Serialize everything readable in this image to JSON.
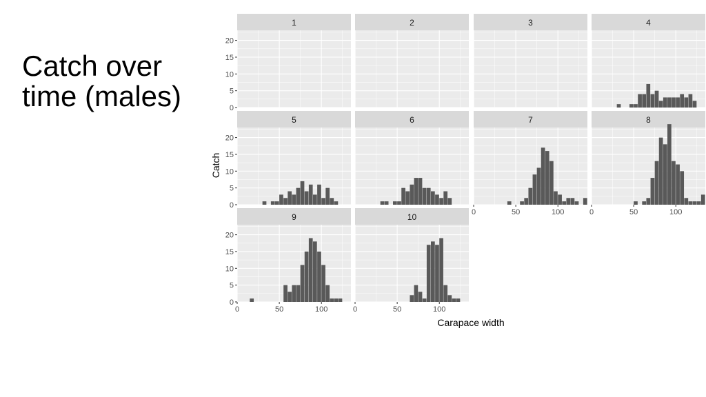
{
  "slide": {
    "title_line1": "Catch over",
    "title_line2": "time (males)"
  },
  "colors": {
    "bar": "#595959",
    "panel_bg": "#ebebeb",
    "strip_bg": "#d9d9d9",
    "grid": "#ffffff",
    "text": "#4d4d4d"
  },
  "chart_data": {
    "type": "bar",
    "layout": "faceted histogram",
    "xlabel": "Carapace width",
    "ylabel": "Catch",
    "xlim": [
      0,
      135
    ],
    "ylim": [
      0,
      23
    ],
    "xticks": [
      0,
      50,
      100
    ],
    "yticks": [
      0,
      5,
      10,
      15,
      20
    ],
    "bin_width": 5,
    "grid": true,
    "panels": [
      {
        "label": "1",
        "bins": []
      },
      {
        "label": "2",
        "bins": []
      },
      {
        "label": "3",
        "bins": []
      },
      {
        "label": "4",
        "bins": [
          [
            30,
            1
          ],
          [
            45,
            1
          ],
          [
            50,
            1
          ],
          [
            55,
            4
          ],
          [
            60,
            4
          ],
          [
            65,
            7
          ],
          [
            70,
            4
          ],
          [
            75,
            5
          ],
          [
            80,
            2
          ],
          [
            85,
            3
          ],
          [
            90,
            3
          ],
          [
            95,
            3
          ],
          [
            100,
            3
          ],
          [
            105,
            4
          ],
          [
            110,
            3
          ],
          [
            115,
            4
          ],
          [
            120,
            2
          ]
        ]
      },
      {
        "label": "5",
        "bins": [
          [
            30,
            1
          ],
          [
            40,
            1
          ],
          [
            45,
            1
          ],
          [
            50,
            3
          ],
          [
            55,
            2
          ],
          [
            60,
            4
          ],
          [
            65,
            3
          ],
          [
            70,
            5
          ],
          [
            75,
            7
          ],
          [
            80,
            4
          ],
          [
            85,
            6
          ],
          [
            90,
            3
          ],
          [
            95,
            6
          ],
          [
            100,
            2
          ],
          [
            105,
            5
          ],
          [
            110,
            2
          ],
          [
            115,
            1
          ]
        ]
      },
      {
        "label": "6",
        "bins": [
          [
            30,
            1
          ],
          [
            35,
            1
          ],
          [
            45,
            1
          ],
          [
            50,
            1
          ],
          [
            55,
            5
          ],
          [
            60,
            4
          ],
          [
            65,
            6
          ],
          [
            70,
            8
          ],
          [
            75,
            8
          ],
          [
            80,
            5
          ],
          [
            85,
            5
          ],
          [
            90,
            4
          ],
          [
            95,
            3
          ],
          [
            100,
            2
          ],
          [
            105,
            4
          ],
          [
            110,
            2
          ]
        ]
      },
      {
        "label": "7",
        "bins": [
          [
            40,
            1
          ],
          [
            55,
            1
          ],
          [
            60,
            2
          ],
          [
            65,
            5
          ],
          [
            70,
            9
          ],
          [
            75,
            11
          ],
          [
            80,
            17
          ],
          [
            85,
            16
          ],
          [
            90,
            13
          ],
          [
            95,
            4
          ],
          [
            100,
            3
          ],
          [
            105,
            1
          ],
          [
            110,
            2
          ],
          [
            115,
            2
          ],
          [
            120,
            1
          ],
          [
            130,
            2
          ]
        ]
      },
      {
        "label": "8",
        "bins": [
          [
            50,
            1
          ],
          [
            60,
            1
          ],
          [
            65,
            2
          ],
          [
            70,
            8
          ],
          [
            75,
            13
          ],
          [
            80,
            20
          ],
          [
            85,
            18
          ],
          [
            90,
            24
          ],
          [
            95,
            13
          ],
          [
            100,
            12
          ],
          [
            105,
            10
          ],
          [
            110,
            2
          ],
          [
            115,
            1
          ],
          [
            120,
            1
          ],
          [
            125,
            1
          ],
          [
            130,
            3
          ]
        ]
      },
      {
        "label": "9",
        "bins": [
          [
            15,
            1
          ],
          [
            55,
            5
          ],
          [
            60,
            3
          ],
          [
            65,
            5
          ],
          [
            70,
            5
          ],
          [
            75,
            11
          ],
          [
            80,
            15
          ],
          [
            85,
            19
          ],
          [
            90,
            18
          ],
          [
            95,
            15
          ],
          [
            100,
            11
          ],
          [
            105,
            5
          ],
          [
            110,
            1
          ],
          [
            115,
            1
          ],
          [
            120,
            1
          ]
        ]
      },
      {
        "label": "10",
        "bins": [
          [
            65,
            2
          ],
          [
            70,
            5
          ],
          [
            75,
            3
          ],
          [
            80,
            1
          ],
          [
            85,
            17
          ],
          [
            90,
            18
          ],
          [
            95,
            17
          ],
          [
            100,
            19
          ],
          [
            105,
            5
          ],
          [
            110,
            2
          ],
          [
            115,
            1
          ],
          [
            120,
            1
          ]
        ]
      }
    ]
  }
}
